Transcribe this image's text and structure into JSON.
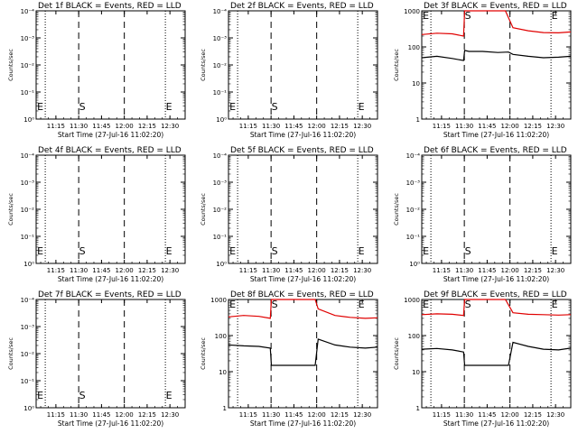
{
  "chart_data": {
    "type": "line",
    "xlabel": "Start Time (27-Jul-16 11:02:20)",
    "ylabel": "Counts/sec",
    "x_tick_labels": [
      "11:15",
      "11:30",
      "11:45",
      "12:00",
      "12:15",
      "12:30"
    ],
    "x_ticks_minutes": [
      13,
      28,
      43,
      58,
      73,
      88
    ],
    "xlim_minutes": [
      0,
      98
    ],
    "ylim": [
      1,
      1000
    ],
    "yscale": "log",
    "marker_lines": [
      {
        "style": "dotted",
        "x_minutes": 6
      },
      {
        "style": "dashed",
        "x_minutes": 28
      },
      {
        "style": "dashed",
        "x_minutes": 58
      },
      {
        "style": "dotted",
        "x_minutes": 85
      }
    ],
    "series_colors": {
      "events": "#000000",
      "lld": "#e00000"
    },
    "panels": [
      {
        "title": "Det 1f BLACK = Events, RED = LLD",
        "ytick_labels": [
          "10⁰",
          "10⁻¹",
          "10⁻²",
          "10⁻³",
          "10⁻⁴"
        ],
        "markers": [
          "E",
          "S",
          "E"
        ],
        "has_data": false
      },
      {
        "title": "Det 2f BLACK = Events, RED = LLD",
        "ytick_labels": [
          "10⁰",
          "10⁻¹",
          "10⁻²",
          "10⁻³",
          "10⁻⁴"
        ],
        "markers": [
          "E",
          "S",
          "E"
        ],
        "has_data": false
      },
      {
        "title": "Det 3f BLACK = Events, RED = LLD",
        "ytick_labels": [
          "1",
          "10",
          "100",
          "1000"
        ],
        "markers": [
          "E",
          "S",
          "E"
        ],
        "has_data": true,
        "events": {
          "x": [
            0,
            10,
            20,
            27.5,
            28.2,
            31,
            40,
            50,
            57,
            60,
            70,
            80,
            90,
            98
          ],
          "y": [
            50,
            55,
            48,
            42,
            80,
            75,
            75,
            70,
            72,
            62,
            55,
            50,
            52,
            55
          ]
        },
        "lld": {
          "x": [
            0,
            10,
            20,
            27.5,
            28.2,
            31,
            40,
            50,
            55,
            60,
            70,
            80,
            90,
            98
          ],
          "y": [
            220,
            240,
            230,
            200,
            1000,
            1000,
            1000,
            1000,
            1000,
            340,
            280,
            250,
            245,
            260
          ]
        }
      },
      {
        "title": "Det 4f BLACK = Events, RED = LLD",
        "ytick_labels": [
          "10⁰",
          "10⁻¹",
          "10⁻²",
          "10⁻³",
          "10⁻⁴"
        ],
        "markers": [
          "E",
          "S",
          "E"
        ],
        "has_data": false
      },
      {
        "title": "Det 5f BLACK = Events, RED = LLD",
        "ytick_labels": [
          "10⁰",
          "10⁻¹",
          "10⁻²",
          "10⁻³",
          "10⁻⁴"
        ],
        "markers": [
          "E",
          "S",
          "E"
        ],
        "has_data": false
      },
      {
        "title": "Det 6f BLACK = Events, RED = LLD",
        "ytick_labels": [
          "10⁰",
          "10⁻¹",
          "10⁻²",
          "10⁻³",
          "10⁻⁴"
        ],
        "markers": [
          "E",
          "S",
          "E"
        ],
        "has_data": false
      },
      {
        "title": "Det 7f BLACK = Events, RED = LLD",
        "ytick_labels": [
          "10⁰",
          "10⁻¹",
          "10⁻²",
          "10⁻³",
          "10⁻⁴"
        ],
        "markers": [
          "E",
          "S",
          "E"
        ],
        "has_data": false
      },
      {
        "title": "Det 8f BLACK = Events, RED = LLD",
        "ytick_labels": [
          "1",
          "10",
          "100",
          "1000"
        ],
        "markers": [
          "E",
          "S",
          "E"
        ],
        "has_data": true,
        "events": {
          "x": [
            0,
            10,
            20,
            27.5,
            28.2,
            31,
            40,
            50,
            57,
            59,
            70,
            80,
            90,
            98
          ],
          "y": [
            55,
            52,
            50,
            45,
            15,
            15,
            15,
            15,
            15,
            80,
            55,
            48,
            45,
            48
          ]
        },
        "lld": {
          "x": [
            0,
            10,
            20,
            27.5,
            28.2,
            31,
            40,
            50,
            57,
            59,
            70,
            80,
            90,
            98
          ],
          "y": [
            330,
            360,
            340,
            300,
            1000,
            1000,
            1000,
            1000,
            1000,
            550,
            360,
            320,
            300,
            310
          ]
        }
      },
      {
        "title": "Det 9f BLACK = Events, RED = LLD",
        "ytick_labels": [
          "1",
          "10",
          "100",
          "1000"
        ],
        "markers": [
          "E",
          "S",
          "E"
        ],
        "has_data": true,
        "events": {
          "x": [
            0,
            10,
            20,
            27.5,
            28.2,
            31,
            40,
            50,
            57,
            60,
            70,
            80,
            90,
            98
          ],
          "y": [
            42,
            44,
            40,
            35,
            15,
            15,
            15,
            15,
            15,
            65,
            50,
            42,
            40,
            45
          ]
        },
        "lld": {
          "x": [
            0,
            10,
            20,
            27.5,
            28.2,
            31,
            40,
            50,
            55,
            60,
            70,
            80,
            90,
            98
          ],
          "y": [
            380,
            400,
            390,
            360,
            1000,
            1000,
            1000,
            1000,
            1000,
            430,
            390,
            380,
            370,
            380
          ]
        }
      }
    ]
  }
}
